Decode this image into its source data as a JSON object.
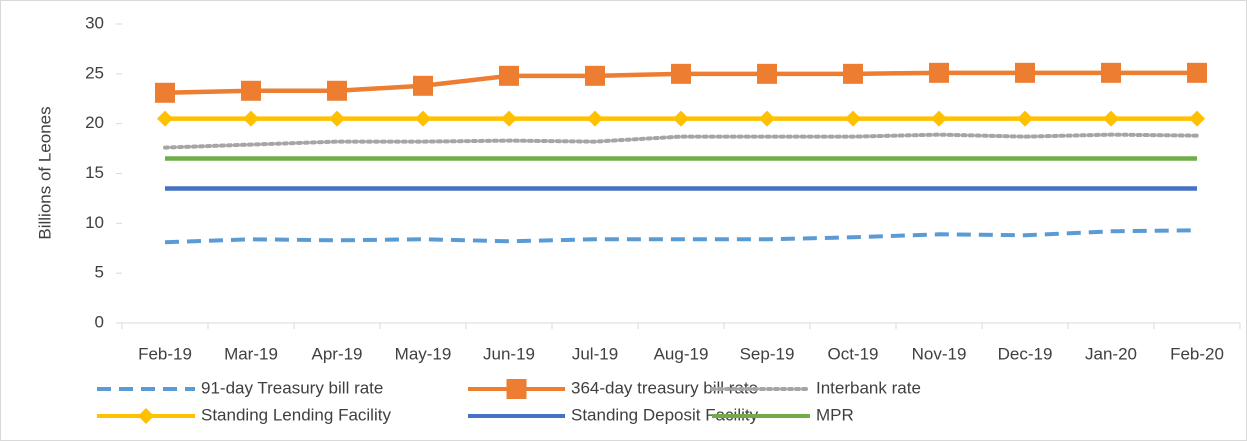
{
  "chart_data": {
    "type": "line",
    "y_axis_label": "Billions of Leones",
    "categories": [
      "Feb-19",
      "Mar-19",
      "Apr-19",
      "May-19",
      "Jun-19",
      "Jul-19",
      "Aug-19",
      "Sep-19",
      "Oct-19",
      "Nov-19",
      "Dec-19",
      "Jan-20",
      "Feb-20"
    ],
    "series": [
      {
        "name": "91-day Treasury bill rate",
        "color": "#5b9bd5",
        "line_style": "dashed",
        "values": [
          8.1,
          8.4,
          8.3,
          8.4,
          8.2,
          8.4,
          8.4,
          8.4,
          8.6,
          8.9,
          8.8,
          9.2,
          9.3
        ]
      },
      {
        "name": "364-day treasury bill rate",
        "color": "#ed7d31",
        "marker": "square",
        "values": [
          23.1,
          23.3,
          23.3,
          23.8,
          24.8,
          24.8,
          25.0,
          25.0,
          25.0,
          25.1,
          25.1,
          25.1,
          25.1
        ]
      },
      {
        "name": "Interbank rate",
        "color": "#a5a5a5",
        "line_style": "dotted",
        "values": [
          17.6,
          17.9,
          18.2,
          18.2,
          18.3,
          18.2,
          18.7,
          18.7,
          18.7,
          18.9,
          18.7,
          18.9,
          18.8
        ]
      },
      {
        "name": "Standing Lending Facility",
        "color": "#ffc000",
        "marker": "diamond",
        "values": [
          20.5,
          20.5,
          20.5,
          20.5,
          20.5,
          20.5,
          20.5,
          20.5,
          20.5,
          20.5,
          20.5,
          20.5,
          20.5
        ]
      },
      {
        "name": "Standing Deposit Facility",
        "color": "#4472c4",
        "values": [
          13.5,
          13.5,
          13.5,
          13.5,
          13.5,
          13.5,
          13.5,
          13.5,
          13.5,
          13.5,
          13.5,
          13.5,
          13.5
        ]
      },
      {
        "name": "MPR",
        "color": "#70ad47",
        "values": [
          16.5,
          16.5,
          16.5,
          16.5,
          16.5,
          16.5,
          16.5,
          16.5,
          16.5,
          16.5,
          16.5,
          16.5,
          16.5
        ]
      }
    ],
    "ylim": [
      0,
      30
    ],
    "yticks": [
      0,
      5,
      10,
      15,
      20,
      25,
      30
    ],
    "grid": false,
    "legend": "bottom"
  }
}
